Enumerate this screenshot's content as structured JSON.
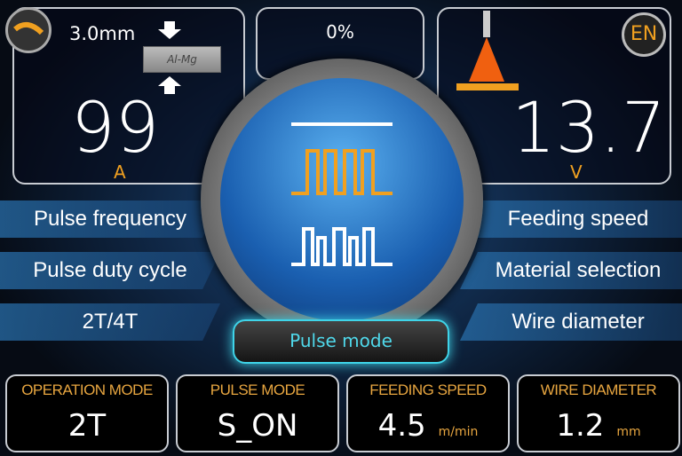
{
  "top_left": {
    "thickness": "3.0mm",
    "material": "Al-Mg",
    "current": "99",
    "current_unit": "A"
  },
  "top_center": {
    "percent": "0%"
  },
  "top_right": {
    "language_button": "EN",
    "voltage": "13.7",
    "voltage_unit": "V"
  },
  "left_menu": [
    "Pulse frequency",
    "Pulse duty cycle",
    "2T/4T"
  ],
  "right_menu": [
    "Feeding speed",
    "Material selection",
    "Wire diameter"
  ],
  "mode_button": "Pulse mode",
  "status": [
    {
      "title": "OPERATION MODE",
      "value": "2T",
      "unit": ""
    },
    {
      "title": "PULSE MODE",
      "value": "S_ON",
      "unit": ""
    },
    {
      "title": "FEEDING SPEED",
      "value": "4.5",
      "unit": "m/min"
    },
    {
      "title": "WIRE DIAMETER",
      "value": "1.2",
      "unit": "mm"
    }
  ],
  "colors": {
    "accent": "#f0a020",
    "glow": "#3fd4e8",
    "blue": "#2a7fd0"
  }
}
